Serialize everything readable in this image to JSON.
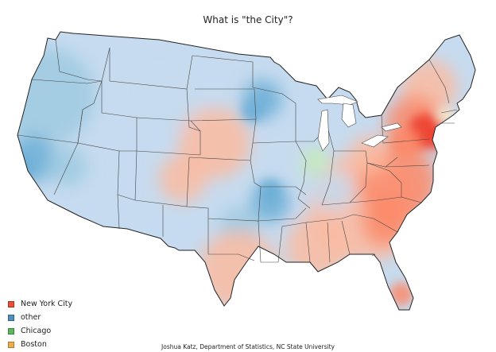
{
  "title": "What is \"the City\"?",
  "credit": "Joshua Katz, Department of Statistics, NC State University",
  "legend": [
    {
      "label": "New York City",
      "color": "#e8503a"
    },
    {
      "label": "other",
      "color": "#4f8fc0"
    },
    {
      "label": "Chicago",
      "color": "#5cb85c"
    },
    {
      "label": "Boston",
      "color": "#f0ad4e"
    }
  ],
  "colors": {
    "other_light": "#c6dbef",
    "other_mid": "#9ecae1",
    "other_strong": "#6baed6",
    "nyc_light": "#fcbba1",
    "nyc_mid": "#fb8a6a",
    "nyc_strong": "#ef3b2c",
    "chicago_light": "#c7e9c0",
    "boston_light": "#fdebc8"
  }
}
